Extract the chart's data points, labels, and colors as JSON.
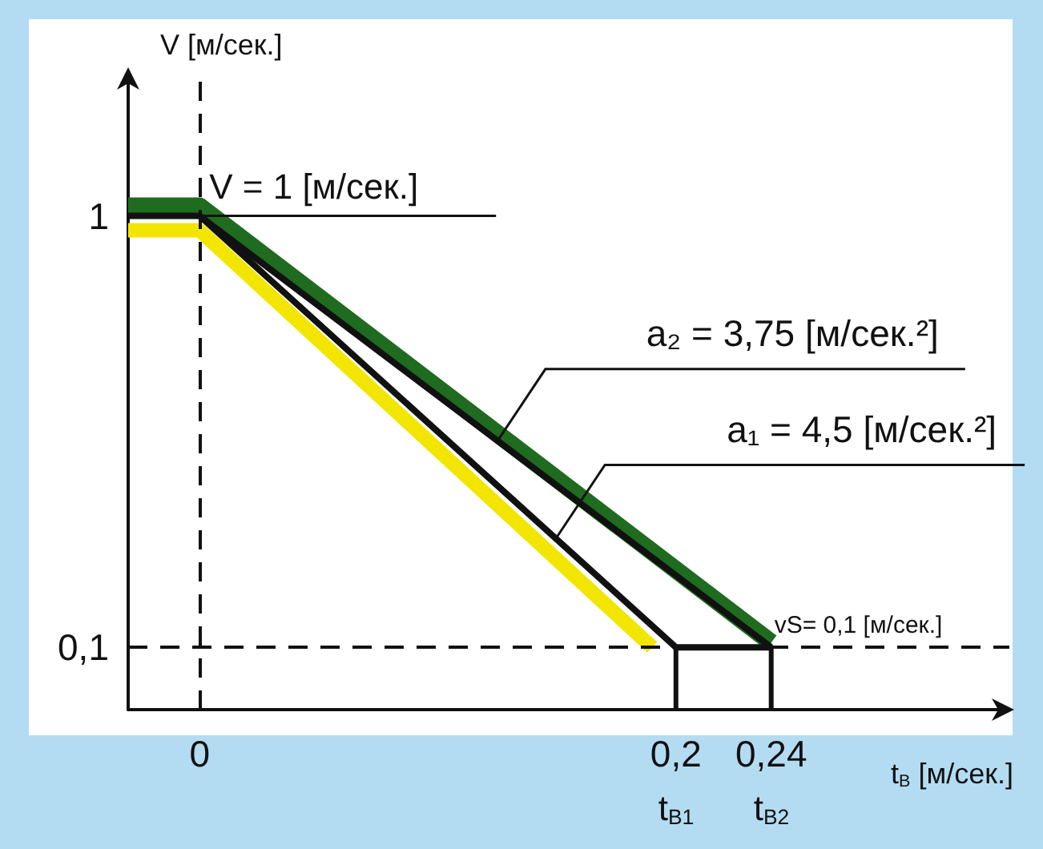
{
  "chart_data": {
    "type": "line",
    "xlabel": "t$_{В}$ [м/сек.]",
    "ylabel": "V [м/сек.]",
    "xlim": [
      -0.03,
      0.34
    ],
    "ylim": [
      -0.03,
      1.3
    ],
    "xticks": [
      {
        "value": 0,
        "label": "0"
      },
      {
        "value": 0.2,
        "label": "0,2"
      },
      {
        "value": 0.24,
        "label": "0,24"
      }
    ],
    "yticks": [
      {
        "value": 0.1,
        "label": "0,1"
      },
      {
        "value": 1,
        "label": "1"
      }
    ],
    "series": [
      {
        "color": "#f2e600",
        "x": [
          -0.03,
          0,
          0.19
        ],
        "values": [
          0.97,
          0.97,
          0.1
        ]
      },
      {
        "color": "#1f6b1f",
        "x": [
          -0.03,
          0,
          0.24
        ],
        "values": [
          1.02,
          1.02,
          0.11
        ]
      },
      {
        "color": "#111111",
        "x": [
          0,
          0.24
        ],
        "values": [
          1,
          0.1
        ]
      },
      {
        "color": "#111111",
        "x": [
          -0.03,
          0,
          0.2,
          0.24
        ],
        "values": [
          1,
          1,
          0.1,
          0.1
        ]
      },
      {
        "color": "#111111",
        "x": [
          0.2,
          0.2
        ],
        "values": [
          0.1,
          -0.03
        ]
      },
      {
        "color": "#111111",
        "x": [
          0.24,
          0.24
        ],
        "values": [
          0.1,
          -0.03
        ]
      }
    ],
    "ref_lines": [
      {
        "axis": "x",
        "value": 0,
        "line_style": "dashed",
        "color": "#111111"
      },
      {
        "axis": "y",
        "value": 0.1,
        "line_style": "dashed",
        "color": "#111111"
      }
    ],
    "annotations": [
      {
        "text": "V = 1 [м/сек.]",
        "x": 0,
        "y": 1
      },
      {
        "text": "a₂ = 3,75 [м/сек.²]",
        "x": 0.125,
        "y": 0.53
      },
      {
        "text": "a₁ = 4,5 [м/сек.²]",
        "x": 0.15,
        "y": 0.33
      },
      {
        "text": "vS= 0,1 [м/сек.]",
        "x": 0.24,
        "y": 0.1
      },
      {
        "text": "t$_{В1}$",
        "x": 0.2,
        "y": -0.03
      },
      {
        "text": "t$_{В2}$",
        "x": 0.24,
        "y": -0.03
      }
    ],
    "grid": false,
    "marker": "none",
    "line_style": "solid"
  }
}
